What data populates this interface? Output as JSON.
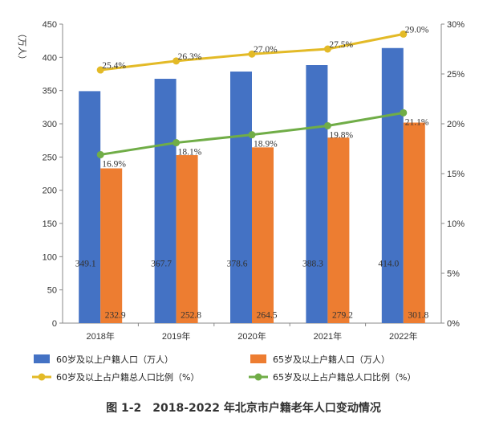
{
  "caption": "图 1-2　2018-2022 年北京市户籍老年人口变动情况",
  "chart_data": {
    "type": "bar",
    "categories": [
      "2018年",
      "2019年",
      "2020年",
      "2021年",
      "2022年"
    ],
    "ylabel_left": "（万人）",
    "ylim_left": [
      0,
      450
    ],
    "yticks_left": [
      "0",
      "50",
      "100",
      "150",
      "200",
      "250",
      "300",
      "350",
      "400",
      "450"
    ],
    "ylim_right": [
      0,
      30
    ],
    "yticks_right": [
      "0%",
      "5%",
      "10%",
      "15%",
      "20%",
      "25%",
      "30%"
    ],
    "bar_series": [
      {
        "name": "60岁及以上户籍人口（万人）",
        "color": "#4472C4",
        "values": [
          349.1,
          367.7,
          378.6,
          388.3,
          414.0
        ],
        "labels": [
          "349.1",
          "367.7",
          "378.6",
          "388.3",
          "414.0"
        ]
      },
      {
        "name": "65岁及以上户籍人口（万人）",
        "color": "#ED7D31",
        "values": [
          232.9,
          252.8,
          264.5,
          279.2,
          301.8
        ],
        "labels": [
          "232.9",
          "252.8",
          "264.5",
          "279.2",
          "301.8"
        ]
      }
    ],
    "line_series": [
      {
        "name": "60岁及以上占户籍总人口比例（%）",
        "color": "#E3BA27",
        "values": [
          25.4,
          26.3,
          27.0,
          27.5,
          29.0
        ],
        "labels": [
          "25.4%",
          "26.3%",
          "27.0%",
          "27.5%",
          "29.0%"
        ]
      },
      {
        "name": "65岁及以上占户籍总人口比例（%）",
        "color": "#70AD47",
        "values": [
          16.9,
          18.1,
          18.9,
          19.8,
          21.1
        ],
        "labels": [
          "16.9%",
          "18.1%",
          "18.9%",
          "19.8%",
          "21.1%"
        ]
      }
    ]
  }
}
